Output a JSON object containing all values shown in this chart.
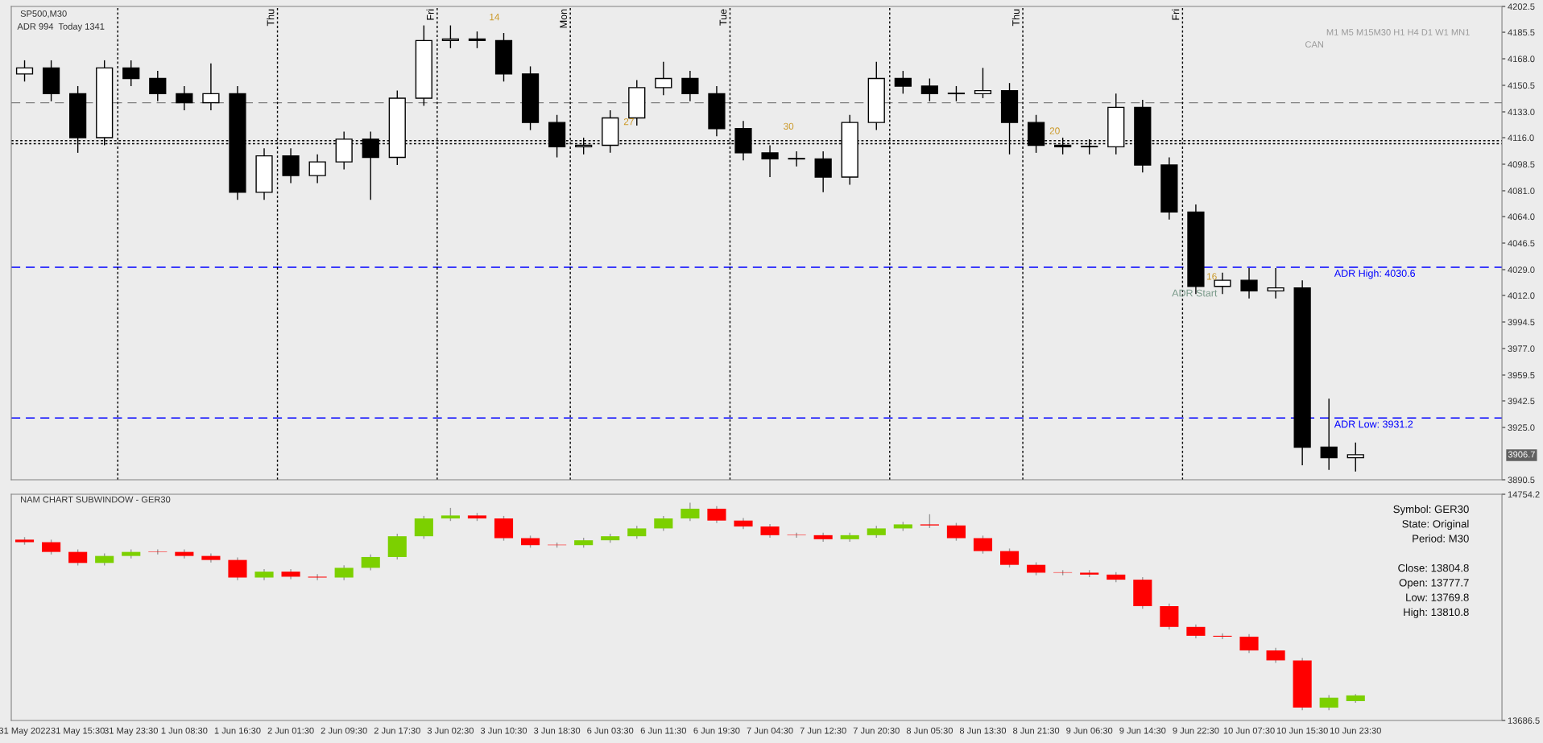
{
  "chart_data": [
    {
      "type": "candlestick",
      "title": "SP500,M30",
      "subtitle": "ADR 994  Today 1341",
      "categories": [
        null,
        null,
        null,
        null,
        null,
        null,
        null,
        null,
        null,
        null,
        null,
        null,
        null,
        null,
        null,
        null,
        null,
        null,
        null,
        null,
        null,
        null,
        null,
        null,
        null,
        null,
        null,
        null,
        null,
        null,
        null,
        null,
        null,
        null,
        null,
        null,
        null,
        null,
        null,
        null,
        null,
        null,
        null,
        null,
        null,
        null,
        null,
        null,
        null,
        null,
        null,
        null,
        null,
        null,
        null,
        null
      ],
      "ohlc": [
        [
          4158,
          4167,
          4153,
          4162
        ],
        [
          4162,
          4167,
          4140,
          4145
        ],
        [
          4145,
          4150,
          4106,
          4116
        ],
        [
          4116,
          4167,
          4111,
          4162
        ],
        [
          4162,
          4167,
          4150,
          4155
        ],
        [
          4155,
          4160,
          4140,
          4145
        ],
        [
          4145,
          4150,
          4134,
          4139
        ],
        [
          4139,
          4165,
          4134,
          4145
        ],
        [
          4145,
          4150,
          4075,
          4080
        ],
        [
          4080,
          4109,
          4075,
          4104
        ],
        [
          4104,
          4109,
          4086,
          4091
        ],
        [
          4091,
          4105,
          4086,
          4100
        ],
        [
          4100,
          4120,
          4095,
          4115
        ],
        [
          4115,
          4120,
          4075,
          4103
        ],
        [
          4103,
          4147,
          4098,
          4142
        ],
        [
          4142,
          4190,
          4137,
          4180
        ],
        [
          4180,
          4190,
          4175,
          4181
        ],
        [
          4181,
          4186,
          4175,
          4180
        ],
        [
          4180,
          4185,
          4153,
          4158
        ],
        [
          4158,
          4163,
          4121,
          4126
        ],
        [
          4126,
          4131,
          4103,
          4110
        ],
        [
          4110,
          4116,
          4105,
          4111
        ],
        [
          4111,
          4134,
          4106,
          4129
        ],
        [
          4129,
          4154,
          4124,
          4149
        ],
        [
          4149,
          4166,
          4144,
          4155
        ],
        [
          4155,
          4160,
          4140,
          4145
        ],
        [
          4145,
          4150,
          4117,
          4122
        ],
        [
          4122,
          4127,
          4101,
          4106
        ],
        [
          4106,
          4111,
          4090,
          4102
        ],
        [
          4102,
          4107,
          4097,
          4102
        ],
        [
          4102,
          4107,
          4080,
          4090
        ],
        [
          4090,
          4131,
          4085,
          4126
        ],
        [
          4126,
          4166,
          4121,
          4155
        ],
        [
          4155,
          4160,
          4145,
          4150
        ],
        [
          4150,
          4155,
          4140,
          4145
        ],
        [
          4145,
          4150,
          4140,
          4145
        ],
        [
          4145,
          4162,
          4142,
          4147
        ],
        [
          4147,
          4152,
          4105,
          4126
        ],
        [
          4126,
          4131,
          4106,
          4111
        ],
        [
          4111,
          4116,
          4105,
          4110
        ],
        [
          4110,
          4115,
          4105,
          4110
        ],
        [
          4110,
          4145,
          4105,
          4136
        ],
        [
          4136,
          4141,
          4093,
          4098
        ],
        [
          4098,
          4103,
          4062,
          4067
        ],
        [
          4067,
          4072,
          4013,
          4018
        ],
        [
          4018,
          4027,
          4013,
          4022
        ],
        [
          4022,
          4030,
          4010,
          4015
        ],
        [
          4015,
          4030,
          4010,
          4017
        ],
        [
          4017,
          4022,
          3900,
          3912
        ],
        [
          3912,
          3944,
          3897,
          3905
        ],
        [
          3905,
          3915,
          3896,
          3907
        ],
        null,
        null,
        null,
        null,
        null
      ],
      "colors": [
        "#ffffff",
        "#000000",
        "#000000",
        "#ffffff",
        "#000000",
        "#000000",
        "#000000",
        "#ffffff",
        "#000000",
        "#ffffff",
        "#000000",
        "#ffffff",
        "#ffffff",
        "#000000",
        "#ffffff",
        "#ffffff",
        "#ffffff",
        "#000000",
        "#000000",
        "#000000",
        "#000000",
        "#ffffff",
        "#ffffff",
        "#ffffff",
        "#ffffff",
        "#000000",
        "#000000",
        "#000000",
        "#000000",
        "#000000",
        "#000000",
        "#ffffff",
        "#ffffff",
        "#000000",
        "#000000",
        "#000000",
        "#ffffff",
        "#000000",
        "#000000",
        "#000000",
        "#000000",
        "#ffffff",
        "#000000",
        "#000000",
        "#000000",
        "#ffffff",
        "#000000",
        "#ffffff",
        "#000000",
        "#000000",
        "#ffffff",
        null,
        null,
        null,
        null,
        null
      ],
      "ylim": [
        3890.5,
        4202.5
      ],
      "yticks": [
        {
          "value": 4202.5,
          "label": "4202.5"
        },
        {
          "value": 4185.5,
          "label": "4185.5"
        },
        {
          "value": 4168,
          "label": "4168.0"
        },
        {
          "value": 4150.5,
          "label": "4150.5"
        },
        {
          "value": 4133,
          "label": "4133.0"
        },
        {
          "value": 4116,
          "label": "4116.0"
        },
        {
          "value": 4098.5,
          "label": "4098.5"
        },
        {
          "value": 4081,
          "label": "4081.0"
        },
        {
          "value": 4064,
          "label": "4064.0"
        },
        {
          "value": 4046.5,
          "label": "4046.5"
        },
        {
          "value": 4029,
          "label": "4029.0"
        },
        {
          "value": 4012,
          "label": "4012.0"
        },
        {
          "value": 3994.5,
          "label": "3994.5"
        },
        {
          "value": 3977,
          "label": "3977.0"
        },
        {
          "value": 3959.5,
          "label": "3959.5"
        },
        {
          "value": 3942.5,
          "label": "3942.5"
        },
        {
          "value": 3925,
          "label": "3925.0"
        },
        {
          "value": 3890.5,
          "label": "3890.5"
        }
      ],
      "tick_labels": "y",
      "ref_lines": [
        {
          "axis": "y",
          "value": 4030.6,
          "label": "ADR High: 4030.6",
          "color": "#0000ff",
          "line_style": "dashed"
        },
        {
          "axis": "y",
          "value": 3931.2,
          "label": "ADR Low: 3931.2",
          "color": "#0000ff",
          "line_style": "dashed"
        },
        {
          "axis": "y",
          "value": 4139,
          "color": "#808080",
          "line_style": "dashed"
        },
        {
          "axis": "y",
          "value": 4114,
          "color": "#000000",
          "line_style": "dotted"
        },
        {
          "axis": "y",
          "value": 4112,
          "color": "#000000",
          "line_style": "dotted"
        }
      ],
      "annotations": [
        "ADR Start",
        "M1 M5 M15M30 H1 H4 D1 W1 MN1",
        "CAN",
        "14",
        "27",
        "30",
        "20",
        "16",
        "3906.7",
        "Thu",
        "Fri",
        "Mon",
        "Tue",
        "Thu",
        "Fri"
      ]
    },
    {
      "type": "candlestick",
      "title": "NAM CHART SUBWINDOW - GER30",
      "categories": [
        "31 May 2022",
        null,
        "31 May 15:30",
        null,
        "31 May 23:30",
        null,
        "1 Jun 08:30",
        null,
        "1 Jun 16:30",
        null,
        "2 Jun 01:30",
        null,
        "2 Jun 09:30",
        null,
        "2 Jun 17:30",
        null,
        "3 Jun 02:30",
        null,
        "3 Jun 10:30",
        null,
        "3 Jun 18:30",
        null,
        "6 Jun 03:30",
        null,
        "6 Jun 11:30",
        null,
        "6 Jun 19:30",
        null,
        "7 Jun 04:30",
        null,
        "7 Jun 12:30",
        null,
        "7 Jun 20:30",
        null,
        "8 Jun 05:30",
        null,
        "8 Jun 13:30",
        null,
        "8 Jun 21:30",
        null,
        "9 Jun 06:30",
        null,
        "9 Jun 14:30",
        null,
        "9 Jun 22:30",
        null,
        "10 Jun 07:30",
        null,
        "10 Jun 15:30",
        null,
        "10 Jun 23:30",
        null,
        null,
        null,
        null,
        null
      ],
      "ohlc": [
        [
          14540,
          14552,
          14516,
          14528
        ],
        [
          14528,
          14540,
          14470,
          14482
        ],
        [
          14482,
          14494,
          14418,
          14430
        ],
        [
          14430,
          14475,
          14418,
          14463
        ],
        [
          14463,
          14494,
          14451,
          14482
        ],
        [
          14482,
          14494,
          14470,
          14482
        ],
        [
          14482,
          14494,
          14451,
          14463
        ],
        [
          14463,
          14475,
          14432,
          14444
        ],
        [
          14444,
          14456,
          14349,
          14361
        ],
        [
          14361,
          14401,
          14349,
          14389
        ],
        [
          14389,
          14401,
          14353,
          14365
        ],
        [
          14365,
          14377,
          14349,
          14361
        ],
        [
          14361,
          14419,
          14349,
          14407
        ],
        [
          14407,
          14470,
          14395,
          14458
        ],
        [
          14458,
          14568,
          14446,
          14556
        ],
        [
          14556,
          14652,
          14544,
          14640
        ],
        [
          14640,
          14690,
          14628,
          14654
        ],
        [
          14654,
          14666,
          14628,
          14640
        ],
        [
          14640,
          14652,
          14535,
          14547
        ],
        [
          14547,
          14559,
          14502,
          14514
        ],
        [
          14514,
          14526,
          14502,
          14514
        ],
        [
          14514,
          14549,
          14502,
          14537
        ],
        [
          14537,
          14568,
          14525,
          14556
        ],
        [
          14556,
          14605,
          14544,
          14593
        ],
        [
          14593,
          14652,
          14581,
          14640
        ],
        [
          14640,
          14714,
          14628,
          14686
        ],
        [
          14686,
          14698,
          14618,
          14630
        ],
        [
          14630,
          14642,
          14590,
          14602
        ],
        [
          14602,
          14614,
          14549,
          14561
        ],
        [
          14561,
          14573,
          14549,
          14561
        ],
        [
          14561,
          14573,
          14530,
          14542
        ],
        [
          14542,
          14573,
          14530,
          14561
        ],
        [
          14561,
          14605,
          14549,
          14593
        ],
        [
          14593,
          14624,
          14581,
          14612
        ],
        [
          14612,
          14660,
          14595,
          14607
        ],
        [
          14607,
          14619,
          14535,
          14547
        ],
        [
          14547,
          14559,
          14474,
          14486
        ],
        [
          14486,
          14498,
          14409,
          14421
        ],
        [
          14421,
          14433,
          14372,
          14384
        ],
        [
          14384,
          14396,
          14372,
          14384
        ],
        [
          14384,
          14396,
          14363,
          14375
        ],
        [
          14375,
          14387,
          14339,
          14351
        ],
        [
          14351,
          14363,
          14214,
          14226
        ],
        [
          14226,
          14238,
          14116,
          14128
        ],
        [
          14128,
          14140,
          14074,
          14086
        ],
        [
          14086,
          14098,
          14070,
          14082
        ],
        [
          14082,
          14094,
          14005,
          14017
        ],
        [
          14017,
          14029,
          13958,
          13970
        ],
        [
          13970,
          13982,
          13735,
          13747
        ],
        [
          13747,
          13806,
          13735,
          13794
        ],
        [
          13777.7,
          13810.8,
          13769.8,
          13804.8
        ],
        null,
        null,
        null,
        null,
        null
      ],
      "colors": [
        "#ff0000",
        "#ff0000",
        "#ff0000",
        "#7cd000",
        "#7cd000",
        "#ff0000",
        "#ff0000",
        "#ff0000",
        "#ff0000",
        "#7cd000",
        "#ff0000",
        "#ff0000",
        "#7cd000",
        "#7cd000",
        "#7cd000",
        "#7cd000",
        "#7cd000",
        "#ff0000",
        "#ff0000",
        "#ff0000",
        "#ff0000",
        "#7cd000",
        "#7cd000",
        "#7cd000",
        "#7cd000",
        "#7cd000",
        "#ff0000",
        "#ff0000",
        "#ff0000",
        "#ff0000",
        "#ff0000",
        "#7cd000",
        "#7cd000",
        "#7cd000",
        "#ff0000",
        "#ff0000",
        "#ff0000",
        "#ff0000",
        "#ff0000",
        "#ff0000",
        "#ff0000",
        "#ff0000",
        "#ff0000",
        "#ff0000",
        "#ff0000",
        "#ff0000",
        "#ff0000",
        "#ff0000",
        "#ff0000",
        "#7cd000",
        "#7cd000",
        null,
        null,
        null,
        null,
        null
      ],
      "ylim": [
        13686.5,
        14754.2
      ],
      "yticks": [
        13686.5,
        14754.2
      ],
      "annotations": [
        "Symbol: GER30",
        "State: Original",
        "Period: M30",
        "Close: 13804.8",
        "Open: 13777.7",
        "Low: 13769.8",
        "High: 13810.8"
      ]
    }
  ]
}
